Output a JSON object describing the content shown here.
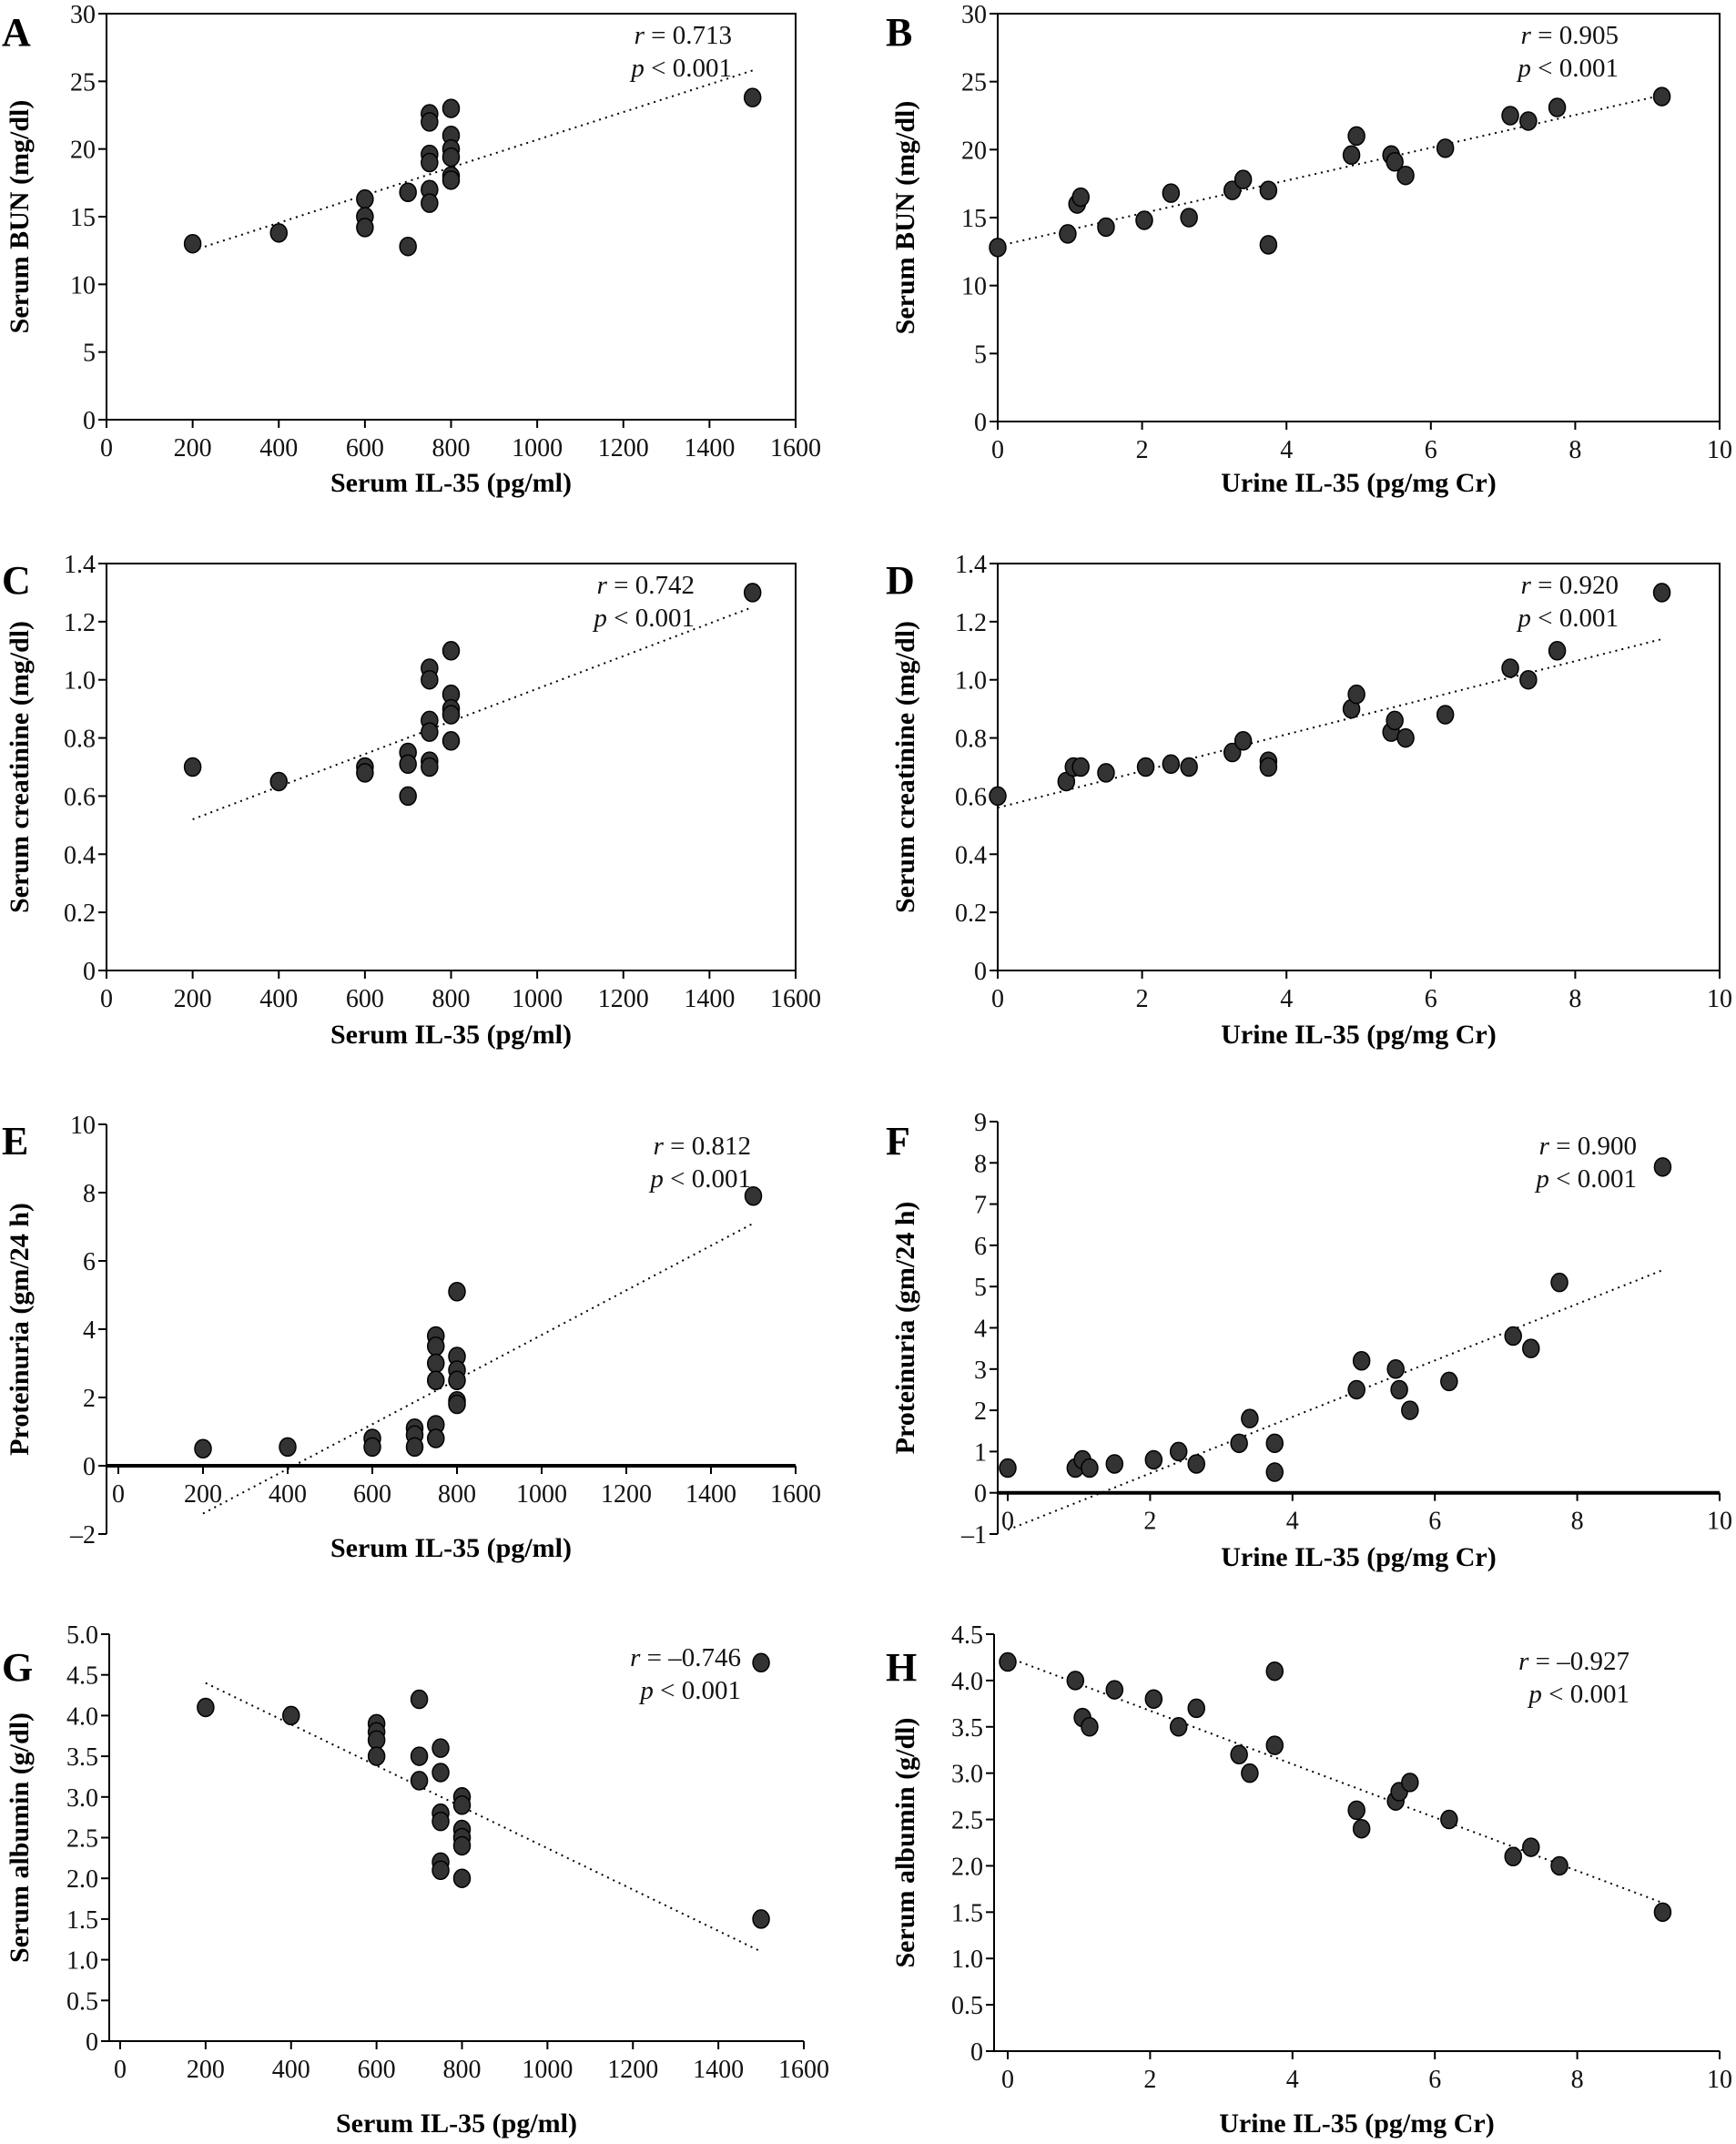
{
  "chart_data": [
    {
      "id": "A",
      "type": "scatter",
      "panel_label": "A",
      "xlabel": "Serum IL-35 (pg/ml)",
      "ylabel": "Serum BUN (mg/dl)",
      "xlim": [
        0,
        1600
      ],
      "ylim": [
        0,
        30
      ],
      "xticks": [
        "0",
        "200",
        "400",
        "600",
        "800",
        "1000",
        "1200",
        "1400",
        "1600"
      ],
      "yticks": [
        "0",
        "5",
        "10",
        "15",
        "20",
        "25",
        "30"
      ],
      "annotation": {
        "r_label": "r",
        "r_value": "= 0.713",
        "p_label": "p",
        "p_value": "< 0.001"
      },
      "trendline": [
        [
          200,
          12.5
        ],
        [
          1500,
          25.8
        ]
      ],
      "points": [
        [
          200,
          13
        ],
        [
          400,
          13.8
        ],
        [
          600,
          16.3
        ],
        [
          600,
          15
        ],
        [
          600,
          14.2
        ],
        [
          700,
          16.8
        ],
        [
          700,
          12.8
        ],
        [
          750,
          22.6
        ],
        [
          750,
          22
        ],
        [
          750,
          19.6
        ],
        [
          750,
          19
        ],
        [
          750,
          17
        ],
        [
          750,
          16
        ],
        [
          800,
          23
        ],
        [
          800,
          21
        ],
        [
          800,
          20
        ],
        [
          800,
          19.4
        ],
        [
          800,
          18
        ],
        [
          800,
          17.7
        ],
        [
          1500,
          23.8
        ]
      ]
    },
    {
      "id": "B",
      "type": "scatter",
      "panel_label": "B",
      "xlabel": "Urine IL-35 (pg/mg Cr)",
      "ylabel": "Serum BUN (mg/dl)",
      "xlim": [
        0,
        10
      ],
      "ylim": [
        0,
        30
      ],
      "xticks": [
        "0",
        "2",
        "4",
        "6",
        "8",
        "10"
      ],
      "yticks": [
        "0",
        "5",
        "10",
        "15",
        "20",
        "25",
        "30"
      ],
      "annotation": {
        "r_label": "r",
        "r_value": "= 0.905",
        "p_label": "p",
        "p_value": "< 0.001"
      },
      "trendline": [
        [
          0,
          12.9
        ],
        [
          9.2,
          24
        ]
      ],
      "points": [
        [
          0,
          12.8
        ],
        [
          0.97,
          13.8
        ],
        [
          1.1,
          16
        ],
        [
          1.15,
          16.5
        ],
        [
          1.5,
          14.3
        ],
        [
          2.03,
          14.8
        ],
        [
          2.4,
          16.8
        ],
        [
          2.65,
          15
        ],
        [
          3.25,
          17
        ],
        [
          3.4,
          17.8
        ],
        [
          3.75,
          17
        ],
        [
          3.75,
          13
        ],
        [
          4.9,
          19.6
        ],
        [
          4.97,
          21
        ],
        [
          5.45,
          19.6
        ],
        [
          5.5,
          19.1
        ],
        [
          5.65,
          18.1
        ],
        [
          6.2,
          20.1
        ],
        [
          7.1,
          22.5
        ],
        [
          7.35,
          22.1
        ],
        [
          7.75,
          23.1
        ],
        [
          9.2,
          23.9
        ]
      ]
    },
    {
      "id": "C",
      "type": "scatter",
      "panel_label": "C",
      "xlabel": "Serum IL-35 (pg/ml)",
      "ylabel": "Serum creatinine (mg/dl)",
      "xlim": [
        0,
        1600
      ],
      "ylim": [
        0,
        1.4
      ],
      "xticks": [
        "0",
        "200",
        "400",
        "600",
        "800",
        "1000",
        "1200",
        "1400",
        "1600"
      ],
      "yticks": [
        "0",
        "0.2",
        "0.4",
        "0.6",
        "0.8",
        "1.0",
        "1.2",
        "1.4"
      ],
      "annotation": {
        "r_label": "r",
        "r_value": "= 0.742",
        "p_label": "p",
        "p_value": "< 0.001"
      },
      "trendline": [
        [
          200,
          0.52
        ],
        [
          1500,
          1.25
        ]
      ],
      "points": [
        [
          200,
          0.7
        ],
        [
          400,
          0.65
        ],
        [
          600,
          0.7
        ],
        [
          600,
          0.68
        ],
        [
          700,
          0.75
        ],
        [
          700,
          0.71
        ],
        [
          700,
          0.6
        ],
        [
          750,
          1.04
        ],
        [
          750,
          1.0
        ],
        [
          750,
          0.86
        ],
        [
          750,
          0.82
        ],
        [
          750,
          0.72
        ],
        [
          750,
          0.7
        ],
        [
          800,
          1.1
        ],
        [
          800,
          0.95
        ],
        [
          800,
          0.9
        ],
        [
          800,
          0.88
        ],
        [
          800,
          0.79
        ],
        [
          1500,
          1.3
        ]
      ]
    },
    {
      "id": "D",
      "type": "scatter",
      "panel_label": "D",
      "xlabel": "Urine IL-35 (pg/mg Cr)",
      "ylabel": "Serum creatinine (mg/dl)",
      "xlim": [
        0,
        10
      ],
      "ylim": [
        0,
        1.4
      ],
      "xticks": [
        "0",
        "2",
        "4",
        "6",
        "8",
        "10"
      ],
      "yticks": [
        "0",
        "0.2",
        "0.4",
        "0.6",
        "0.8",
        "1.0",
        "1.2",
        "1.4"
      ],
      "annotation": {
        "r_label": "r",
        "r_value": "= 0.920",
        "p_label": "p",
        "p_value": "< 0.001"
      },
      "trendline": [
        [
          0,
          0.56
        ],
        [
          9.2,
          1.14
        ]
      ],
      "points": [
        [
          0,
          0.6
        ],
        [
          0.95,
          0.65
        ],
        [
          1.05,
          0.7
        ],
        [
          1.15,
          0.7
        ],
        [
          1.5,
          0.68
        ],
        [
          2.05,
          0.7
        ],
        [
          2.4,
          0.71
        ],
        [
          2.65,
          0.7
        ],
        [
          3.25,
          0.75
        ],
        [
          3.4,
          0.79
        ],
        [
          3.75,
          0.72
        ],
        [
          3.75,
          0.7
        ],
        [
          4.9,
          0.9
        ],
        [
          4.97,
          0.95
        ],
        [
          5.45,
          0.82
        ],
        [
          5.5,
          0.86
        ],
        [
          5.65,
          0.8
        ],
        [
          6.2,
          0.88
        ],
        [
          7.1,
          1.04
        ],
        [
          7.35,
          1.0
        ],
        [
          7.75,
          1.1
        ],
        [
          9.2,
          1.3
        ]
      ]
    },
    {
      "id": "E",
      "type": "scatter",
      "panel_label": "E",
      "xlabel": "Serum IL-35 (pg/ml)",
      "ylabel": "Proteinuria (gm/24 h)",
      "xlim": [
        0,
        1600
      ],
      "ylim": [
        -2,
        10
      ],
      "xticks": [
        "0",
        "200",
        "400",
        "600",
        "800",
        "1000",
        "1200",
        "1400",
        "1600"
      ],
      "yticks": [
        "–2",
        "0",
        "2",
        "4",
        "6",
        "8",
        "10"
      ],
      "annotation": {
        "r_label": "r",
        "r_value": "= 0.812",
        "p_label": "p",
        "p_value": "< 0.001"
      },
      "trendline": [
        [
          200,
          -1.4
        ],
        [
          1500,
          7.1
        ]
      ],
      "points": [
        [
          200,
          0.5
        ],
        [
          400,
          0.55
        ],
        [
          600,
          0.8
        ],
        [
          600,
          0.55
        ],
        [
          700,
          1.1
        ],
        [
          700,
          0.9
        ],
        [
          700,
          0.55
        ],
        [
          750,
          3.8
        ],
        [
          750,
          3.5
        ],
        [
          750,
          3.0
        ],
        [
          750,
          2.5
        ],
        [
          750,
          1.2
        ],
        [
          750,
          0.8
        ],
        [
          800,
          5.1
        ],
        [
          800,
          3.2
        ],
        [
          800,
          2.8
        ],
        [
          800,
          2.5
        ],
        [
          800,
          1.9
        ],
        [
          800,
          1.8
        ],
        [
          1500,
          7.9
        ]
      ]
    },
    {
      "id": "F",
      "type": "scatter",
      "panel_label": "F",
      "xlabel": "Urine IL-35 (pg/mg Cr)",
      "ylabel": "Proteinuria (gm/24 h)",
      "xlim": [
        0,
        10
      ],
      "ylim": [
        -1,
        9
      ],
      "xticks": [
        "0",
        "2",
        "4",
        "6",
        "8",
        "10"
      ],
      "yticks": [
        "–1",
        "0",
        "1",
        "2",
        "3",
        "4",
        "5",
        "6",
        "7",
        "8",
        "9"
      ],
      "annotation": {
        "r_label": "r",
        "r_value": "= 0.900",
        "p_label": "p",
        "p_value": "< 0.001"
      },
      "trendline": [
        [
          0,
          -0.9
        ],
        [
          9.2,
          5.4
        ]
      ],
      "points": [
        [
          0,
          0.6
        ],
        [
          0.95,
          0.6
        ],
        [
          1.05,
          0.8
        ],
        [
          1.15,
          0.6
        ],
        [
          1.5,
          0.7
        ],
        [
          2.05,
          0.8
        ],
        [
          2.4,
          1.0
        ],
        [
          2.65,
          0.7
        ],
        [
          3.25,
          1.2
        ],
        [
          3.4,
          1.8
        ],
        [
          3.75,
          1.2
        ],
        [
          3.75,
          0.5
        ],
        [
          4.9,
          2.5
        ],
        [
          4.97,
          3.2
        ],
        [
          5.45,
          3.0
        ],
        [
          5.5,
          2.5
        ],
        [
          5.65,
          2.0
        ],
        [
          6.2,
          2.7
        ],
        [
          7.1,
          3.8
        ],
        [
          7.35,
          3.5
        ],
        [
          7.75,
          5.1
        ],
        [
          9.2,
          7.9
        ]
      ]
    },
    {
      "id": "G",
      "type": "scatter",
      "panel_label": "G",
      "xlabel": "Serum IL-35 (pg/ml)",
      "ylabel": "Serum albumin (g/dl)",
      "xlim": [
        0,
        1600
      ],
      "ylim": [
        0,
        5
      ],
      "xticks": [
        "0",
        "200",
        "400",
        "600",
        "800",
        "1000",
        "1200",
        "1400",
        "1600"
      ],
      "yticks": [
        "0",
        "0.5",
        "1.0",
        "1.5",
        "2.0",
        "2.5",
        "3.0",
        "3.5",
        "4.0",
        "4.5",
        "5.0"
      ],
      "annotation": {
        "r_label": "r",
        "r_value": "= –0.746",
        "p_label": "p",
        "p_value": "< 0.001"
      },
      "trendline": [
        [
          200,
          4.4
        ],
        [
          1500,
          1.1
        ]
      ],
      "points": [
        [
          200,
          4.1
        ],
        [
          400,
          4.0
        ],
        [
          600,
          3.9
        ],
        [
          600,
          3.8
        ],
        [
          600,
          3.7
        ],
        [
          600,
          3.5
        ],
        [
          700,
          4.2
        ],
        [
          700,
          3.5
        ],
        [
          700,
          3.2
        ],
        [
          750,
          3.6
        ],
        [
          750,
          3.3
        ],
        [
          750,
          2.8
        ],
        [
          750,
          2.7
        ],
        [
          750,
          2.2
        ],
        [
          750,
          2.1
        ],
        [
          800,
          3.0
        ],
        [
          800,
          2.9
        ],
        [
          800,
          2.6
        ],
        [
          800,
          2.5
        ],
        [
          800,
          2.4
        ],
        [
          800,
          2.0
        ],
        [
          1500,
          4.65
        ],
        [
          1500,
          1.5
        ]
      ]
    },
    {
      "id": "H",
      "type": "scatter",
      "panel_label": "H",
      "xlabel": "Urine IL-35 (pg/mg Cr)",
      "ylabel": "Serum albumin (g/dl)",
      "xlim": [
        0,
        10
      ],
      "ylim": [
        0,
        4.5
      ],
      "xticks": [
        "0",
        "2",
        "4",
        "6",
        "8",
        "10"
      ],
      "yticks": [
        "0",
        "0.5",
        "1.0",
        "1.5",
        "2.0",
        "2.5",
        "3.0",
        "3.5",
        "4.0",
        "4.5"
      ],
      "annotation": {
        "r_label": "r",
        "r_value": "= –0.927",
        "p_label": "p",
        "p_value": "< 0.001"
      },
      "trendline": [
        [
          0,
          4.25
        ],
        [
          9.2,
          1.6
        ]
      ],
      "points": [
        [
          0,
          4.2
        ],
        [
          0.95,
          4.0
        ],
        [
          1.05,
          3.6
        ],
        [
          1.15,
          3.5
        ],
        [
          1.5,
          3.9
        ],
        [
          2.05,
          3.8
        ],
        [
          2.4,
          3.5
        ],
        [
          2.65,
          3.7
        ],
        [
          3.25,
          3.2
        ],
        [
          3.4,
          3.0
        ],
        [
          3.75,
          4.1
        ],
        [
          3.75,
          3.3
        ],
        [
          4.9,
          2.6
        ],
        [
          4.97,
          2.4
        ],
        [
          5.45,
          2.7
        ],
        [
          5.5,
          2.8
        ],
        [
          5.65,
          2.9
        ],
        [
          6.2,
          2.5
        ],
        [
          7.1,
          2.1
        ],
        [
          7.35,
          2.2
        ],
        [
          7.75,
          2.0
        ],
        [
          9.2,
          1.5
        ]
      ]
    }
  ],
  "colors": {
    "marker_fill": "#333333",
    "marker_stroke": "#000000",
    "axis": "#000000",
    "trendline": "#000000"
  }
}
